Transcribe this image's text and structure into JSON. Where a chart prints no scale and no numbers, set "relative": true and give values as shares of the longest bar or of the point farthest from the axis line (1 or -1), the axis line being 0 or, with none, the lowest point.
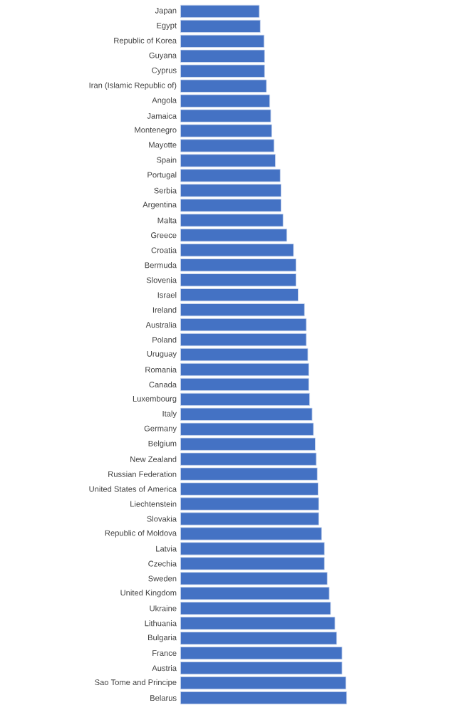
{
  "chart_data": {
    "type": "bar",
    "orientation": "horizontal",
    "relative": true,
    "color": "#4472c4",
    "categories": [
      "Japan",
      "Egypt",
      "Republic of Korea",
      "Guyana",
      "Cyprus",
      "Iran (Islamic Republic of)",
      "Angola",
      "Jamaica",
      "Montenegro",
      "Mayotte",
      "Spain",
      "Portugal",
      "Serbia",
      "Argentina",
      "Malta",
      "Greece",
      "Croatia",
      "Bermuda",
      "Slovenia",
      "Israel",
      "Ireland",
      "Australia",
      "Poland",
      "Uruguay",
      "Romania",
      "Canada",
      "Luxembourg",
      "Italy",
      "Germany",
      "Belgium",
      "New Zealand",
      "Russian Federation",
      "United States of America",
      "Liechtenstein",
      "Slovakia",
      "Republic of Moldova",
      "Latvia",
      "Czechia",
      "Sweden",
      "United Kingdom",
      "Ukraine",
      "Lithuania",
      "Bulgaria",
      "France",
      "Austria",
      "Sao Tome and Principe",
      "Belarus"
    ],
    "values": [
      0.474,
      0.48,
      0.503,
      0.506,
      0.506,
      0.517,
      0.537,
      0.543,
      0.549,
      0.563,
      0.571,
      0.6,
      0.605,
      0.605,
      0.617,
      0.64,
      0.68,
      0.695,
      0.695,
      0.708,
      0.746,
      0.757,
      0.757,
      0.766,
      0.772,
      0.772,
      0.777,
      0.792,
      0.8,
      0.811,
      0.817,
      0.823,
      0.828,
      0.832,
      0.832,
      0.849,
      0.866,
      0.866,
      0.883,
      0.895,
      0.903,
      0.929,
      0.94,
      0.972,
      0.972,
      0.995,
      1
    ]
  }
}
